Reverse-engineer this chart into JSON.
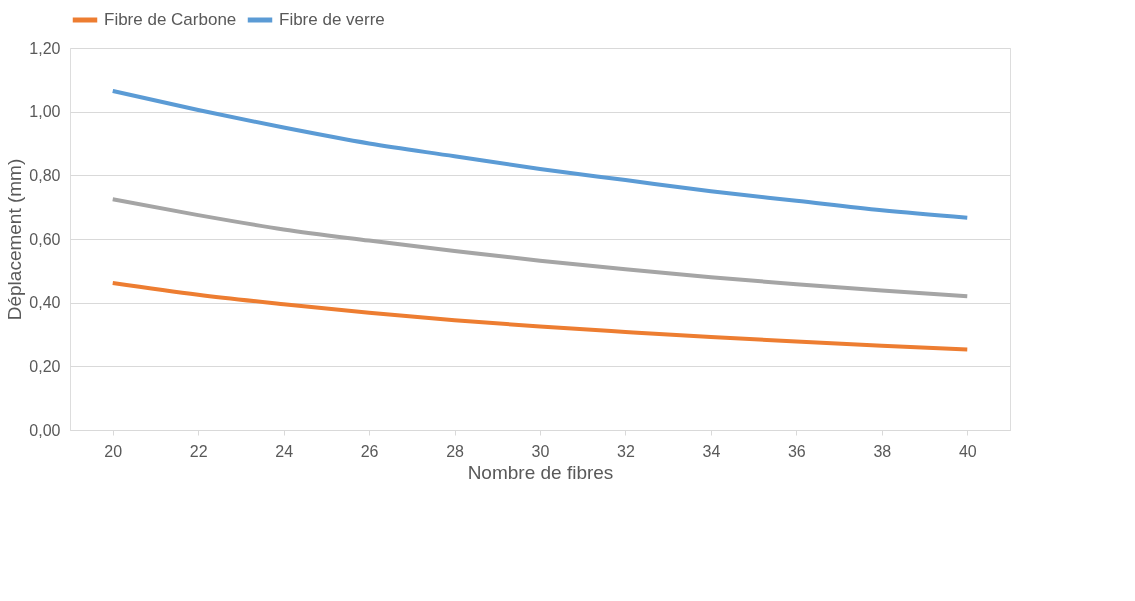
{
  "chart_data": {
    "type": "line",
    "xlabel": "Nombre de fibres",
    "ylabel": "Déplacement (mm)",
    "categories": [
      "20",
      "22",
      "24",
      "26",
      "28",
      "30",
      "32",
      "34",
      "36",
      "38",
      "40"
    ],
    "series": [
      {
        "color": "#a5a5a5",
        "values": [
          0.725,
          0.675,
          0.63,
          0.595,
          0.562,
          0.532,
          0.505,
          0.48,
          0.458,
          0.438,
          0.42
        ]
      },
      {
        "name": "Fibre de Carbone",
        "color": "#ed7d31",
        "values": [
          0.462,
          0.425,
          0.395,
          0.368,
          0.345,
          0.325,
          0.308,
          0.292,
          0.278,
          0.265,
          0.253
        ]
      },
      {
        "name": "Fibre de verre",
        "color": "#5b9bd5",
        "values": [
          1.065,
          1.005,
          0.95,
          0.9,
          0.86,
          0.82,
          0.785,
          0.75,
          0.72,
          0.69,
          0.667
        ]
      }
    ],
    "ylim": [
      0,
      1.2
    ],
    "yticks": [
      {
        "value": 0,
        "label": "0,00"
      },
      {
        "value": 0.2,
        "label": "0,20"
      },
      {
        "value": 0.4,
        "label": "0,40"
      },
      {
        "value": 0.6,
        "label": "0,60"
      },
      {
        "value": 0.8,
        "label": "0,80"
      },
      {
        "value": 1.0,
        "label": "1,00"
      },
      {
        "value": 1.2,
        "label": "1,20"
      }
    ],
    "grid": "y",
    "legend": "top",
    "marker": "none",
    "line_style": "solid"
  }
}
